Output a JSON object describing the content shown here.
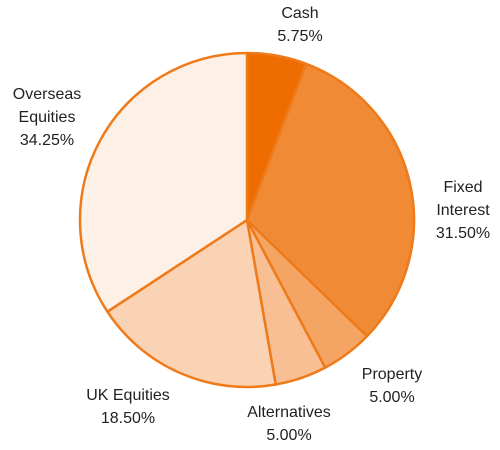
{
  "chart_data": {
    "type": "pie",
    "categories": [
      "Cash",
      "Fixed Interest",
      "Property",
      "Alternatives",
      "UK Equities",
      "Overseas Equities"
    ],
    "values": [
      5.75,
      31.5,
      5,
      5,
      18.5,
      34.25
    ],
    "value_labels": [
      "5.75%",
      "31.50%",
      "5.00%",
      "5.00%",
      "18.50%",
      "34.25%"
    ],
    "colors": [
      "#ef6c00",
      "#f08a35",
      "#f4a564",
      "#f7bf93",
      "#fad3b4",
      "#fdf1e7"
    ],
    "edge_color": "#ef7a1a"
  }
}
